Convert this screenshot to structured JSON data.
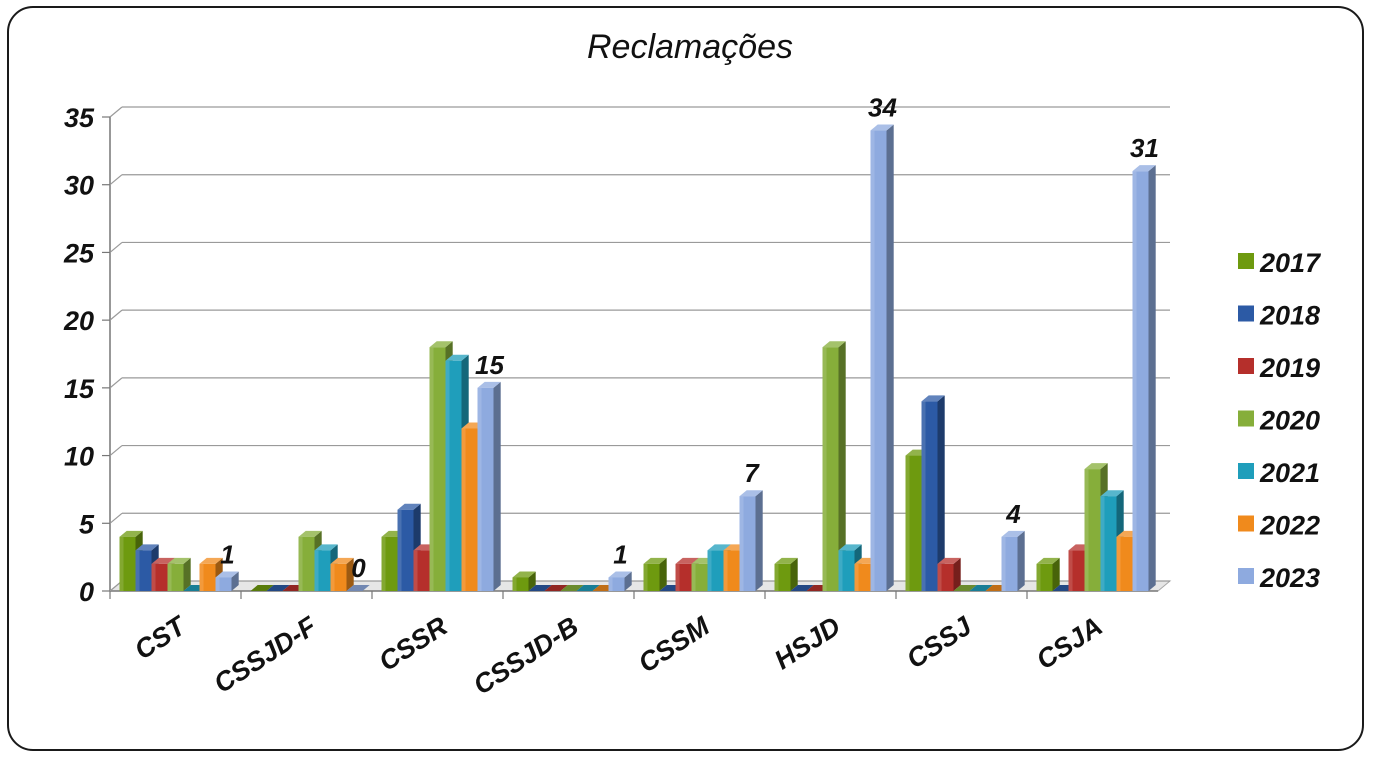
{
  "chart_data": {
    "type": "bar",
    "title": "Reclamações",
    "categories": [
      "CST",
      "CSSJD-F",
      "CSSR",
      "CSSJD-B",
      "CSSM",
      "HSJD",
      "CSSJ",
      "CSJA"
    ],
    "series": [
      {
        "name": "2017",
        "color": "#6e9a0f",
        "values": [
          4,
          0,
          4,
          1,
          2,
          2,
          10,
          2
        ]
      },
      {
        "name": "2018",
        "color": "#2c5aa5",
        "values": [
          3,
          0,
          6,
          0,
          0,
          0,
          14,
          0
        ]
      },
      {
        "name": "2019",
        "color": "#b52f2b",
        "values": [
          2,
          0,
          3,
          0,
          2,
          0,
          2,
          3
        ]
      },
      {
        "name": "2020",
        "color": "#86ae3a",
        "values": [
          2,
          4,
          18,
          0,
          2,
          18,
          0,
          9
        ]
      },
      {
        "name": "2021",
        "color": "#1f9ebb",
        "values": [
          0,
          3,
          17,
          0,
          3,
          3,
          0,
          7
        ]
      },
      {
        "name": "2022",
        "color": "#f08a1c",
        "values": [
          2,
          2,
          12,
          0,
          3,
          2,
          0,
          4
        ]
      },
      {
        "name": "2023",
        "color": "#8eaadf",
        "values": [
          1,
          0,
          15,
          1,
          7,
          34,
          4,
          31
        ]
      }
    ],
    "data_labels": [
      {
        "category": "CST",
        "series": "2023",
        "text": "1"
      },
      {
        "category": "CSSJD-F",
        "series": "2023",
        "text": "0"
      },
      {
        "category": "CSSR",
        "series": "2023",
        "text": "15"
      },
      {
        "category": "CSSJD-B",
        "series": "2023",
        "text": "1"
      },
      {
        "category": "CSSM",
        "series": "2023",
        "text": "7"
      },
      {
        "category": "HSJD",
        "series": "2023",
        "text": "34"
      },
      {
        "category": "CSSJ",
        "series": "2023",
        "text": "4"
      },
      {
        "category": "CSJA",
        "series": "2023",
        "text": "31"
      }
    ],
    "y_ticks": [
      "0",
      "5",
      "10",
      "15",
      "20",
      "25",
      "30",
      "35"
    ],
    "ylim": [
      0,
      35
    ],
    "grid": true,
    "legend_position": "right",
    "style": "3d-clustered-column"
  }
}
